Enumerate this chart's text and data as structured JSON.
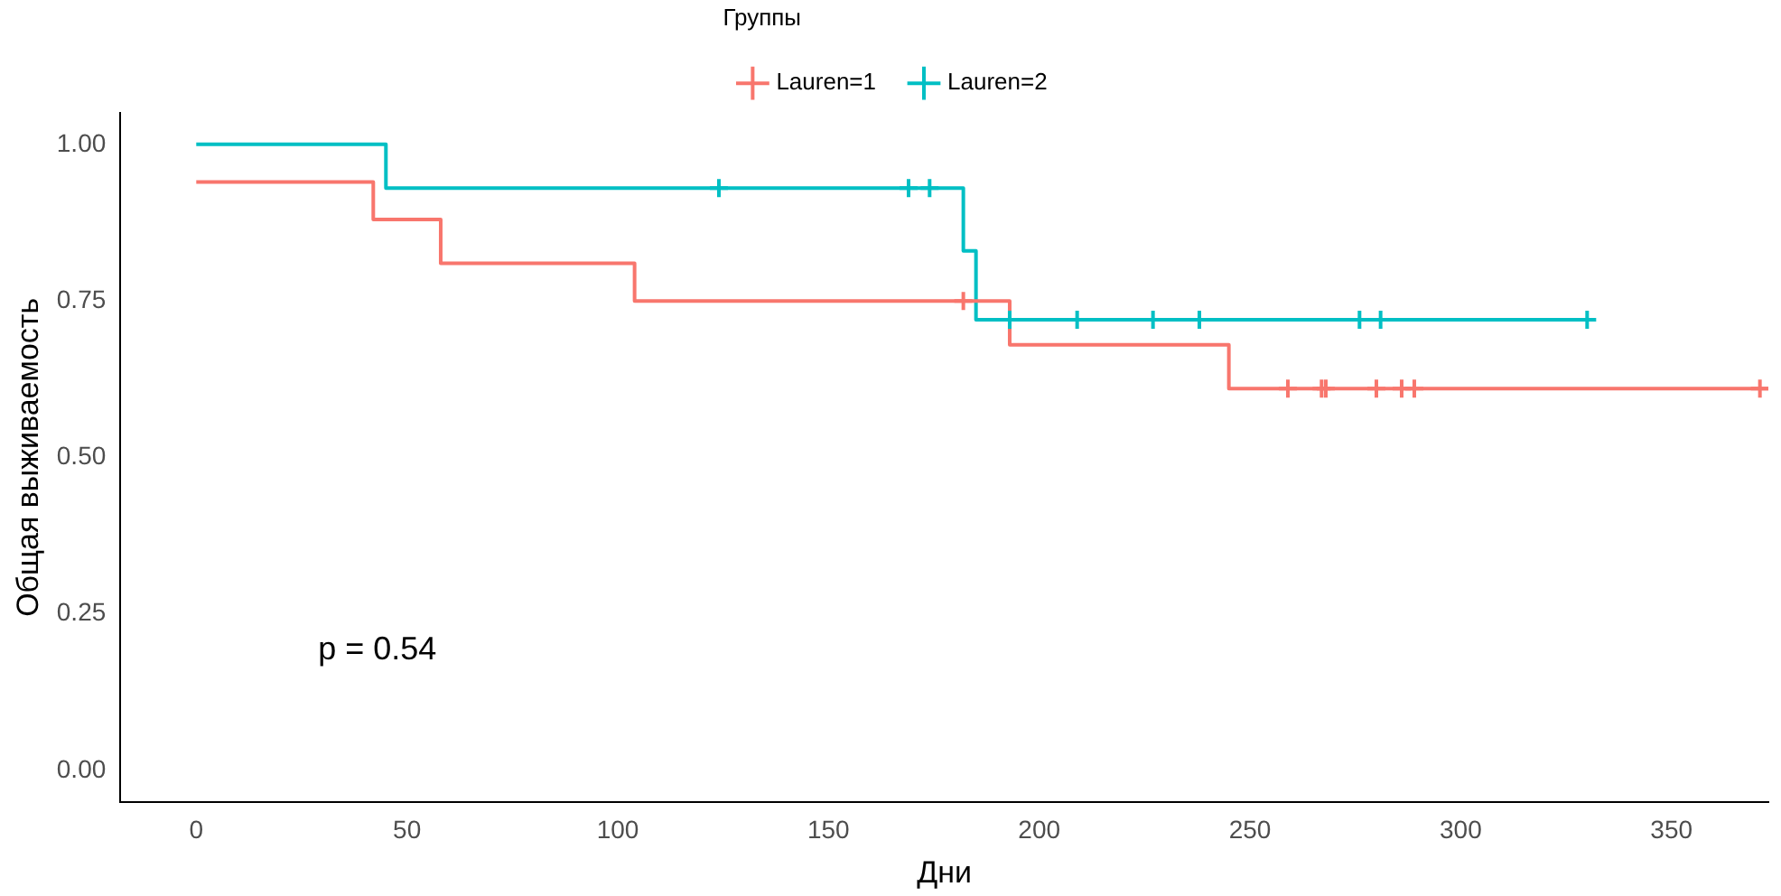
{
  "chart_data": {
    "type": "step",
    "xlabel": "Дни",
    "ylabel": "Общая выживаемость",
    "legend_title": "Группы",
    "legend": "top",
    "grid": false,
    "annotations": [
      "p = 0.54"
    ],
    "xlim": [
      -18,
      373
    ],
    "xticks": [
      0,
      50,
      100,
      150,
      200,
      250,
      300,
      350
    ],
    "ylim": [
      -0.05,
      1.05
    ],
    "yticks": [
      {
        "value": 0,
        "label": "0.00"
      },
      {
        "value": 0.25,
        "label": "0.25"
      },
      {
        "value": 0.5,
        "label": "0.50"
      },
      {
        "value": 0.75,
        "label": "0.75"
      },
      {
        "value": 1,
        "label": "1.00"
      }
    ],
    "series": [
      {
        "name": "Lauren=1",
        "color": "#f8766d",
        "x": [
          0,
          42,
          58,
          104,
          193,
          245,
          373
        ],
        "values": [
          0.94,
          0.88,
          0.81,
          0.75,
          0.68,
          0.61,
          0.61
        ]
      },
      {
        "name": "Lauren=2",
        "color": "#00bfc4",
        "x": [
          0,
          45,
          182,
          185,
          330
        ],
        "values": [
          1,
          0.93,
          0.83,
          0.72,
          0.72
        ]
      },
      {
        "type": "scatter",
        "color": "#f8766d",
        "marker": "cross",
        "x": [
          182,
          259,
          267,
          268,
          280,
          286,
          289,
          371
        ],
        "values": [
          0.75,
          0.61,
          0.61,
          0.61,
          0.61,
          0.61,
          0.61,
          0.61
        ]
      },
      {
        "type": "scatter",
        "color": "#00bfc4",
        "marker": "cross",
        "x": [
          124,
          169,
          174,
          193,
          209,
          227,
          238,
          276,
          281,
          330
        ],
        "values": [
          0.93,
          0.93,
          0.93,
          0.72,
          0.72,
          0.72,
          0.72,
          0.72,
          0.72,
          0.72
        ]
      }
    ]
  }
}
